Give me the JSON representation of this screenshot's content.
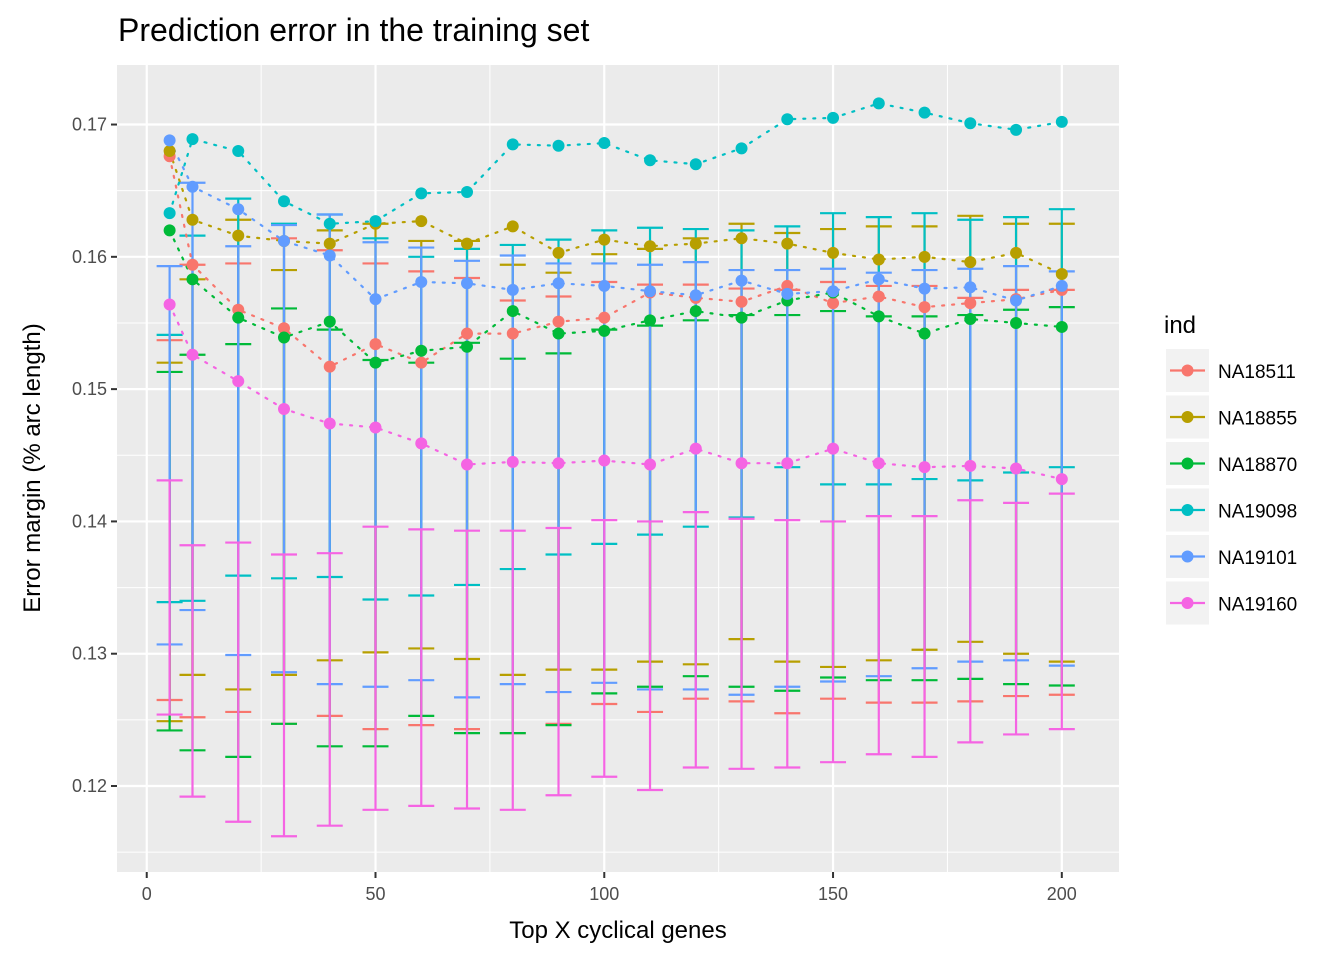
{
  "chart_data": {
    "type": "line",
    "title": "Prediction error in the training set",
    "xlabel": "Top X cyclical genes",
    "ylabel": "Error margin (% arc length)",
    "xlim": [
      -6.5,
      212.5
    ],
    "ylim": [
      0.1135,
      0.1745
    ],
    "x_ticks": [
      0,
      50,
      100,
      150,
      200
    ],
    "x_tick_labels": [
      "0",
      "50",
      "100",
      "150",
      "200"
    ],
    "y_ticks": [
      0.12,
      0.13,
      0.14,
      0.15,
      0.16,
      0.17
    ],
    "y_tick_labels": [
      "0.12",
      "0.13",
      "0.14",
      "0.15",
      "0.16",
      "0.17"
    ],
    "grid": true,
    "legend": {
      "title": "ind",
      "position": "right"
    },
    "x": [
      5,
      10,
      20,
      30,
      40,
      50,
      60,
      70,
      80,
      90,
      100,
      110,
      120,
      130,
      140,
      150,
      160,
      170,
      180,
      190,
      200
    ],
    "series": [
      {
        "name": "NA18511",
        "color": "#F8766D",
        "values": [
          0.1676,
          0.1594,
          0.156,
          0.1546,
          0.1517,
          0.1534,
          0.152,
          0.1542,
          0.1542,
          0.1551,
          0.1554,
          0.1573,
          0.1569,
          0.1566,
          0.1578,
          0.1565,
          0.157,
          0.1562,
          0.1565,
          0.1568,
          0.1575
        ],
        "upper": [
          0.1537,
          0.1594,
          0.1595,
          0.1614,
          0.1605,
          0.1595,
          0.1589,
          0.1584,
          0.1567,
          0.157,
          0.1581,
          0.1579,
          0.1579,
          0.1576,
          0.1575,
          0.1581,
          0.1578,
          0.1578,
          0.1569,
          0.1575,
          0.1575
        ],
        "lower": [
          0.1265,
          0.1252,
          0.1256,
          0.1247,
          0.1253,
          0.1243,
          0.1246,
          0.1243,
          0.124,
          0.1247,
          0.1262,
          0.1256,
          0.1266,
          0.1264,
          0.1255,
          0.1266,
          0.1263,
          0.1263,
          0.1264,
          0.1268,
          0.1269
        ]
      },
      {
        "name": "NA18855",
        "color": "#B79F00",
        "values": [
          0.168,
          0.1628,
          0.1616,
          0.1612,
          0.161,
          0.1625,
          0.1627,
          0.161,
          0.1623,
          0.1603,
          0.1613,
          0.1608,
          0.161,
          0.1614,
          0.161,
          0.1603,
          0.1598,
          0.16,
          0.1596,
          0.1603,
          0.1587
        ],
        "upper": [
          0.152,
          0.1583,
          0.1628,
          0.159,
          0.162,
          0.1625,
          0.1612,
          0.1612,
          0.1594,
          0.1588,
          0.1602,
          0.1606,
          0.1614,
          0.1625,
          0.1618,
          0.1621,
          0.1623,
          0.1623,
          0.1631,
          0.1625,
          0.1625
        ],
        "lower": [
          0.1249,
          0.1284,
          0.1273,
          0.1284,
          0.1295,
          0.1301,
          0.1304,
          0.1296,
          0.1284,
          0.1288,
          0.1288,
          0.1294,
          0.1292,
          0.1311,
          0.1294,
          0.129,
          0.1295,
          0.1303,
          0.1309,
          0.13,
          0.1294
        ]
      },
      {
        "name": "NA18870",
        "color": "#00BA38",
        "values": [
          0.162,
          0.1583,
          0.1554,
          0.1539,
          0.1551,
          0.152,
          0.1529,
          0.1532,
          0.1559,
          0.1542,
          0.1544,
          0.1552,
          0.1559,
          0.1554,
          0.1567,
          0.1573,
          0.1555,
          0.1542,
          0.1553,
          0.155,
          0.1547
        ],
        "upper": [
          0.1513,
          0.1526,
          0.1534,
          0.1561,
          0.1545,
          0.1522,
          0.152,
          0.1535,
          0.1523,
          0.1527,
          0.1545,
          0.1548,
          0.1552,
          0.1556,
          0.1556,
          0.1559,
          0.1555,
          0.1555,
          0.1556,
          0.156,
          0.1562
        ],
        "lower": [
          0.1242,
          0.1227,
          0.1222,
          0.1247,
          0.123,
          0.123,
          0.1253,
          0.124,
          0.124,
          0.1246,
          0.127,
          0.1275,
          0.1283,
          0.1275,
          0.1272,
          0.1282,
          0.128,
          0.128,
          0.1281,
          0.1277,
          0.1276
        ]
      },
      {
        "name": "NA19098",
        "color": "#00BFC4",
        "values": [
          0.1633,
          0.1689,
          0.168,
          0.1642,
          0.1625,
          0.1627,
          0.1648,
          0.1649,
          0.1685,
          0.1684,
          0.1686,
          0.1673,
          0.167,
          0.1682,
          0.1704,
          0.1705,
          0.1716,
          0.1709,
          0.1701,
          0.1696,
          0.1702
        ],
        "upper": [
          0.1541,
          0.1616,
          0.1644,
          0.1625,
          0.1632,
          0.1614,
          0.16,
          0.1606,
          0.1609,
          0.1613,
          0.162,
          0.1622,
          0.1621,
          0.162,
          0.1623,
          0.1633,
          0.163,
          0.1633,
          0.1628,
          0.163,
          0.1636
        ],
        "lower": [
          0.1339,
          0.134,
          0.1359,
          0.1357,
          0.1358,
          0.1341,
          0.1344,
          0.1352,
          0.1364,
          0.1375,
          0.1383,
          0.139,
          0.1396,
          0.1403,
          0.1441,
          0.1428,
          0.1428,
          0.1432,
          0.1431,
          0.1437,
          0.1441
        ]
      },
      {
        "name": "NA19101",
        "color": "#619CFF",
        "values": [
          0.1688,
          0.1653,
          0.1636,
          0.1612,
          0.1601,
          0.1568,
          0.1581,
          0.158,
          0.1575,
          0.158,
          0.1578,
          0.1574,
          0.1571,
          0.1582,
          0.1572,
          0.1574,
          0.1583,
          0.1576,
          0.1577,
          0.1567,
          0.1578
        ],
        "upper": [
          0.1593,
          0.1656,
          0.1608,
          0.1624,
          0.1632,
          0.1611,
          0.1607,
          0.1597,
          0.1601,
          0.1595,
          0.1595,
          0.1594,
          0.1596,
          0.159,
          0.159,
          0.1591,
          0.1588,
          0.159,
          0.1591,
          0.1593,
          0.1589
        ],
        "lower": [
          0.1307,
          0.1333,
          0.1299,
          0.1286,
          0.1277,
          0.1275,
          0.128,
          0.1267,
          0.1277,
          0.1271,
          0.1278,
          0.1273,
          0.1273,
          0.1269,
          0.1275,
          0.1279,
          0.1283,
          0.1289,
          0.1294,
          0.1295,
          0.1291
        ]
      },
      {
        "name": "NA19160",
        "color": "#F564E3",
        "values": [
          0.1564,
          0.1526,
          0.1506,
          0.1485,
          0.1474,
          0.1471,
          0.1459,
          0.1443,
          0.1445,
          0.1444,
          0.1446,
          0.1443,
          0.1455,
          0.1444,
          0.1444,
          0.1455,
          0.1444,
          0.1441,
          0.1442,
          0.144,
          0.1432
        ],
        "upper": [
          0.1431,
          0.1382,
          0.1384,
          0.1375,
          0.1376,
          0.1396,
          0.1394,
          0.1393,
          0.1393,
          0.1395,
          0.1401,
          0.14,
          0.1407,
          0.1402,
          0.1401,
          0.14,
          0.1404,
          0.1404,
          0.1416,
          0.1414,
          0.1421
        ],
        "lower": [
          0.1254,
          0.1192,
          0.1173,
          0.1162,
          0.117,
          0.1182,
          0.1185,
          0.1183,
          0.1182,
          0.1193,
          0.1207,
          0.1197,
          0.1214,
          0.1213,
          0.1214,
          0.1218,
          0.1224,
          0.1222,
          0.1233,
          0.1239,
          0.1243
        ]
      }
    ]
  }
}
